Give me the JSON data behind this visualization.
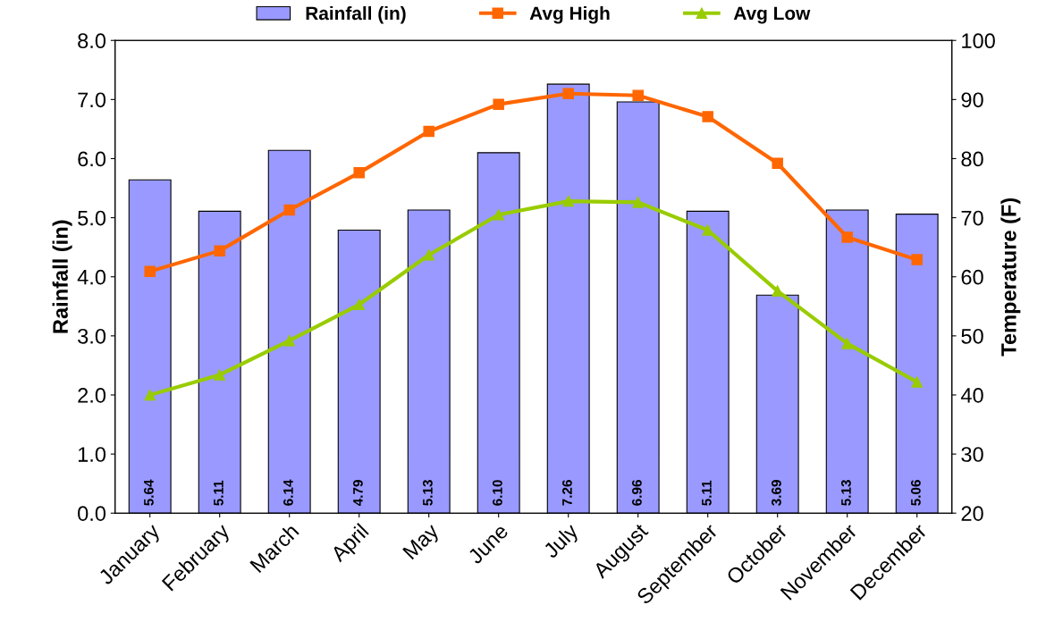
{
  "chart_data": {
    "type": "bar",
    "categories": [
      "January",
      "February",
      "March",
      "April",
      "May",
      "June",
      "July",
      "August",
      "September",
      "October",
      "November",
      "December"
    ],
    "ylabel": "Rainfall (in)",
    "y2label": "Temperature (F)",
    "ylim": [
      0,
      8
    ],
    "yticks": [
      {
        "value": 0,
        "label": "0.0"
      },
      {
        "value": 1,
        "label": "1.0"
      },
      {
        "value": 2,
        "label": "2.0"
      },
      {
        "value": 3,
        "label": "3.0"
      },
      {
        "value": 4,
        "label": "4.0"
      },
      {
        "value": 5,
        "label": "5.0"
      },
      {
        "value": 6,
        "label": "6.0"
      },
      {
        "value": 7,
        "label": "7.0"
      },
      {
        "value": 8,
        "label": "8.0"
      }
    ],
    "y2lim": [
      20,
      100
    ],
    "y2ticks": [
      20,
      30,
      40,
      50,
      60,
      70,
      80,
      90,
      100
    ],
    "legend": "top",
    "grid": false,
    "series": [
      {
        "name": "Rainfall (in)",
        "color": "#9999ff",
        "values": [
          5.64,
          5.11,
          6.14,
          4.79,
          5.13,
          6.1,
          7.26,
          6.96,
          5.11,
          3.69,
          5.13,
          5.06
        ],
        "value_labels": [
          "5.64",
          "5.11",
          "6.14",
          "4.79",
          "5.13",
          "6.10",
          "7.26",
          "6.96",
          "5.11",
          "3.69",
          "5.13",
          "5.06"
        ]
      },
      {
        "name": "Avg High",
        "type": "line",
        "axis": "y2",
        "color": "#ff6600",
        "marker": "square",
        "values": [
          60.9,
          64.4,
          71.3,
          77.6,
          84.6,
          89.2,
          91.0,
          90.7,
          87.1,
          79.2,
          66.7,
          62.9
        ]
      },
      {
        "name": "Avg Low",
        "type": "line",
        "axis": "y2",
        "color": "#99cc00",
        "marker": "triangle",
        "values": [
          40.0,
          43.4,
          49.2,
          55.3,
          63.7,
          70.5,
          72.8,
          72.6,
          67.9,
          57.6,
          48.7,
          42.2
        ]
      }
    ]
  }
}
